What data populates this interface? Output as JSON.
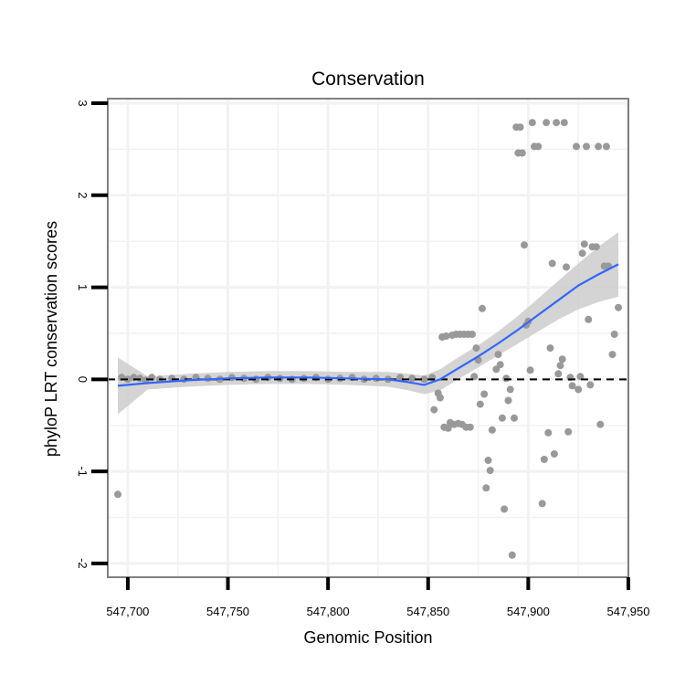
{
  "chart_data": {
    "type": "scatter",
    "title": "Conservation",
    "xlabel": "Genomic Position",
    "ylabel": "phyloP LRT conservation scores",
    "xlim": [
      547690,
      547950
    ],
    "ylim": [
      -2.15,
      3.05
    ],
    "x_ticks": [
      547700,
      547750,
      547800,
      547850,
      547900,
      547950
    ],
    "x_tick_labels": [
      "547,700",
      "547,750",
      "547,800",
      "547,850",
      "547,900",
      "547,950"
    ],
    "y_ticks": [
      -2,
      -1,
      0,
      1,
      2,
      3
    ],
    "y_tick_labels": [
      "-2",
      "-1",
      "0",
      "1",
      "2",
      "3"
    ],
    "grid": true,
    "reference_line": {
      "y": 0,
      "style": "dashed"
    },
    "colors": {
      "points": "#999999",
      "smooth": "#3366ff",
      "band": "#cccccc",
      "grid": "#f2f2f2",
      "border": "#808080"
    },
    "points": [
      {
        "x": 547695,
        "y": -1.25
      },
      {
        "x": 547697,
        "y": 0.02
      },
      {
        "x": 547700,
        "y": 0.0
      },
      {
        "x": 547703,
        "y": 0.02
      },
      {
        "x": 547706,
        "y": 0.01
      },
      {
        "x": 547709,
        "y": -0.01
      },
      {
        "x": 547712,
        "y": 0.02
      },
      {
        "x": 547716,
        "y": 0.0
      },
      {
        "x": 547722,
        "y": 0.01
      },
      {
        "x": 547728,
        "y": 0.0
      },
      {
        "x": 547734,
        "y": 0.02
      },
      {
        "x": 547740,
        "y": 0.01
      },
      {
        "x": 547746,
        "y": 0.0
      },
      {
        "x": 547752,
        "y": 0.02
      },
      {
        "x": 547758,
        "y": 0.01
      },
      {
        "x": 547764,
        "y": 0.0
      },
      {
        "x": 547770,
        "y": 0.02
      },
      {
        "x": 547776,
        "y": 0.01
      },
      {
        "x": 547782,
        "y": 0.0
      },
      {
        "x": 547788,
        "y": 0.01
      },
      {
        "x": 547794,
        "y": 0.02
      },
      {
        "x": 547800,
        "y": 0.0
      },
      {
        "x": 547806,
        "y": 0.01
      },
      {
        "x": 547812,
        "y": 0.02
      },
      {
        "x": 547818,
        "y": 0.0
      },
      {
        "x": 547824,
        "y": 0.01
      },
      {
        "x": 547830,
        "y": 0.0
      },
      {
        "x": 547836,
        "y": 0.02
      },
      {
        "x": 547842,
        "y": 0.01
      },
      {
        "x": 547848,
        "y": 0.0
      },
      {
        "x": 547852,
        "y": 0.02
      },
      {
        "x": 547853,
        "y": -0.33
      },
      {
        "x": 547855,
        "y": -0.15
      },
      {
        "x": 547856,
        "y": -0.2
      },
      {
        "x": 547857,
        "y": 0.46
      },
      {
        "x": 547858,
        "y": -0.52
      },
      {
        "x": 547859,
        "y": 0.47
      },
      {
        "x": 547860,
        "y": -0.53
      },
      {
        "x": 547861,
        "y": -0.47
      },
      {
        "x": 547862,
        "y": 0.48
      },
      {
        "x": 547863,
        "y": -0.49
      },
      {
        "x": 547864,
        "y": 0.49
      },
      {
        "x": 547865,
        "y": -0.48
      },
      {
        "x": 547866,
        "y": 0.49
      },
      {
        "x": 547867,
        "y": -0.49
      },
      {
        "x": 547868,
        "y": 0.49
      },
      {
        "x": 547869,
        "y": -0.52
      },
      {
        "x": 547870,
        "y": 0.49
      },
      {
        "x": 547871,
        "y": -0.52
      },
      {
        "x": 547872,
        "y": 0.49
      },
      {
        "x": 547873,
        "y": 0.03
      },
      {
        "x": 547874,
        "y": 0.34
      },
      {
        "x": 547875,
        "y": 0.21
      },
      {
        "x": 547876,
        "y": -0.27
      },
      {
        "x": 547877,
        "y": 0.77
      },
      {
        "x": 547878,
        "y": -0.16
      },
      {
        "x": 547879,
        "y": -1.18
      },
      {
        "x": 547880,
        "y": -0.88
      },
      {
        "x": 547881,
        "y": -0.99
      },
      {
        "x": 547882,
        "y": -0.55
      },
      {
        "x": 547884,
        "y": 0.11
      },
      {
        "x": 547885,
        "y": 0.27
      },
      {
        "x": 547886,
        "y": 0.16
      },
      {
        "x": 547887,
        "y": -0.42
      },
      {
        "x": 547888,
        "y": -1.41
      },
      {
        "x": 547889,
        "y": 0.01
      },
      {
        "x": 547890,
        "y": -0.23
      },
      {
        "x": 547891,
        "y": -0.11
      },
      {
        "x": 547892,
        "y": -1.91
      },
      {
        "x": 547893,
        "y": -0.42
      },
      {
        "x": 547894,
        "y": 2.74
      },
      {
        "x": 547895,
        "y": 2.46
      },
      {
        "x": 547896,
        "y": 2.74
      },
      {
        "x": 547897,
        "y": 2.46
      },
      {
        "x": 547898,
        "y": 1.46
      },
      {
        "x": 547899,
        "y": 0.59
      },
      {
        "x": 547900,
        "y": 0.63
      },
      {
        "x": 547901,
        "y": 0.1
      },
      {
        "x": 547902,
        "y": 2.79
      },
      {
        "x": 547903,
        "y": 2.53
      },
      {
        "x": 547905,
        "y": 2.53
      },
      {
        "x": 547907,
        "y": -1.35
      },
      {
        "x": 547908,
        "y": -0.87
      },
      {
        "x": 547909,
        "y": 2.79
      },
      {
        "x": 547910,
        "y": -0.58
      },
      {
        "x": 547911,
        "y": 0.34
      },
      {
        "x": 547912,
        "y": 1.26
      },
      {
        "x": 547913,
        "y": -0.81
      },
      {
        "x": 547914,
        "y": 2.79
      },
      {
        "x": 547915,
        "y": 0.06
      },
      {
        "x": 547916,
        "y": 0.15
      },
      {
        "x": 547917,
        "y": 0.22
      },
      {
        "x": 547918,
        "y": 2.79
      },
      {
        "x": 547919,
        "y": 1.22
      },
      {
        "x": 547920,
        "y": -0.57
      },
      {
        "x": 547921,
        "y": 0.02
      },
      {
        "x": 547922,
        "y": -0.07
      },
      {
        "x": 547924,
        "y": 2.53
      },
      {
        "x": 547925,
        "y": -0.11
      },
      {
        "x": 547926,
        "y": 0.03
      },
      {
        "x": 547927,
        "y": 1.37
      },
      {
        "x": 547928,
        "y": 1.47
      },
      {
        "x": 547929,
        "y": 2.53
      },
      {
        "x": 547930,
        "y": 0.65
      },
      {
        "x": 547931,
        "y": -0.06
      },
      {
        "x": 547932,
        "y": 1.44
      },
      {
        "x": 547934,
        "y": 1.44
      },
      {
        "x": 547935,
        "y": 2.53
      },
      {
        "x": 547936,
        "y": -0.49
      },
      {
        "x": 547938,
        "y": 1.23
      },
      {
        "x": 547939,
        "y": 2.53
      },
      {
        "x": 547940,
        "y": 1.23
      },
      {
        "x": 547942,
        "y": 0.27
      },
      {
        "x": 547943,
        "y": 0.49
      },
      {
        "x": 547945,
        "y": 0.78
      }
    ],
    "smooth": {
      "x": [
        547695,
        547710,
        547730,
        547750,
        547770,
        547790,
        547810,
        547830,
        547840,
        547848,
        547856,
        547865,
        547875,
        547885,
        547895,
        547905,
        547915,
        547925,
        547935,
        547945
      ],
      "y": [
        -0.07,
        -0.04,
        -0.01,
        0.01,
        0.02,
        0.02,
        0.01,
        0.0,
        -0.03,
        -0.06,
        0.0,
        0.12,
        0.25,
        0.39,
        0.54,
        0.7,
        0.86,
        1.02,
        1.14,
        1.25
      ],
      "lower": [
        -0.38,
        -0.11,
        -0.08,
        -0.06,
        -0.05,
        -0.05,
        -0.06,
        -0.08,
        -0.12,
        -0.16,
        -0.12,
        0.0,
        0.13,
        0.26,
        0.39,
        0.52,
        0.65,
        0.76,
        0.84,
        0.9
      ],
      "upper": [
        0.24,
        0.03,
        0.06,
        0.08,
        0.09,
        0.09,
        0.08,
        0.08,
        0.06,
        0.04,
        0.11,
        0.24,
        0.37,
        0.52,
        0.69,
        0.88,
        1.07,
        1.26,
        1.44,
        1.6
      ]
    }
  }
}
